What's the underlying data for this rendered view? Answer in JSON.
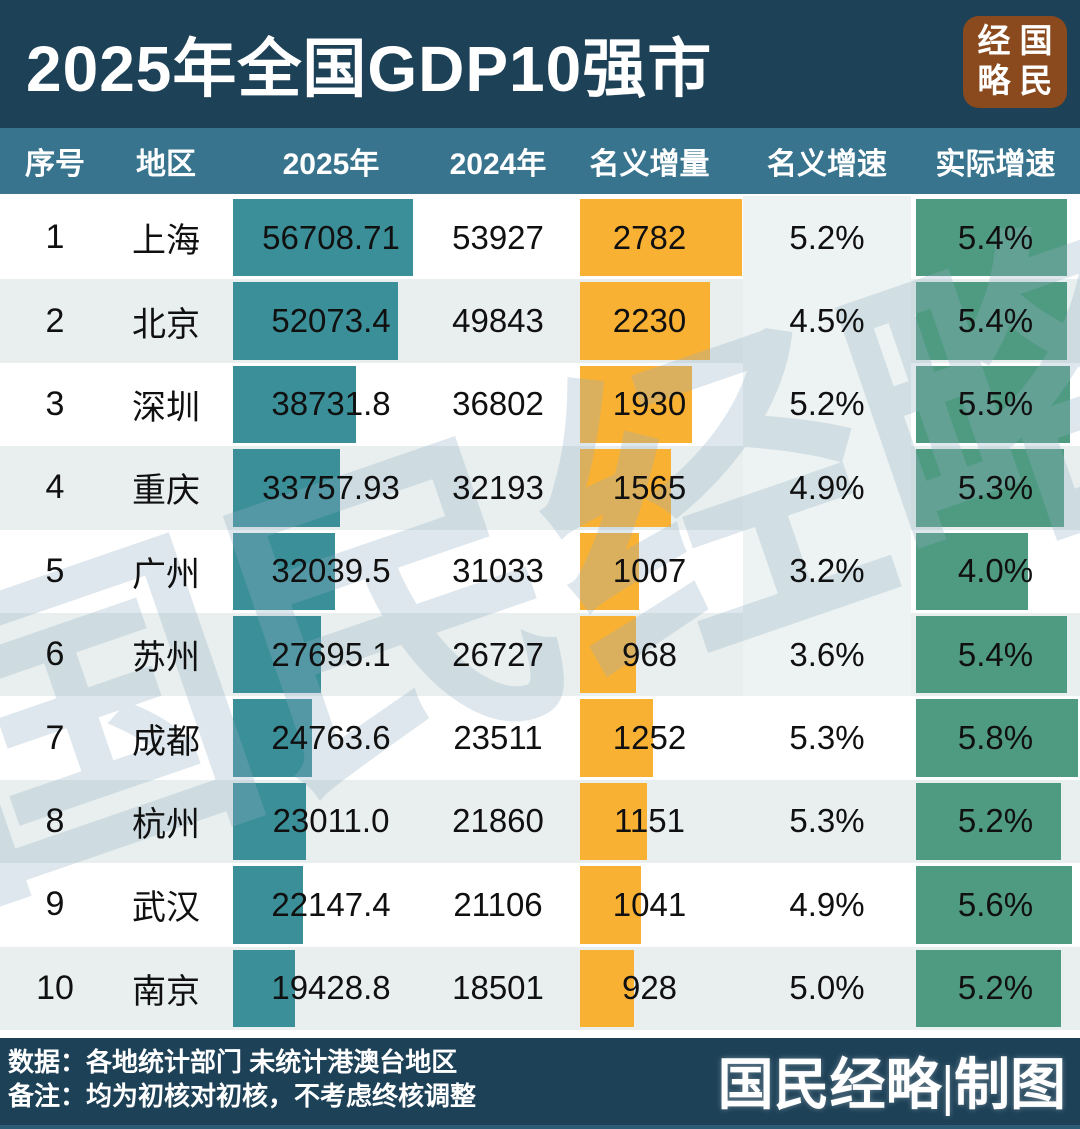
{
  "header": {
    "title": "2025年全国GDP10强市",
    "seal": {
      "chars": [
        "经",
        "国",
        "略",
        "民"
      ],
      "color": "#8a4a1d"
    }
  },
  "chart_data": {
    "type": "table",
    "title": "2025年全国GDP10强市",
    "columns": [
      "序号",
      "地区",
      "2025年",
      "2024年",
      "名义增量",
      "名义增速",
      "实际增速"
    ],
    "bar_columns": {
      "gdp_2025": {
        "color": "#3a8f99",
        "max_value": 56708.71
      },
      "increment": {
        "color": "#f9b134",
        "max_value": 2782
      },
      "real_growth": {
        "color": "#4f9b82",
        "max_value": 5.8
      }
    },
    "rows": [
      {
        "index": "1",
        "city": "上海",
        "gdp_2025": "56708.71",
        "gdp_2024": "53927",
        "increment": "2782",
        "nominal_growth": "5.2%",
        "real_growth": "5.4%"
      },
      {
        "index": "2",
        "city": "北京",
        "gdp_2025": "52073.4",
        "gdp_2024": "49843",
        "increment": "2230",
        "nominal_growth": "4.5%",
        "real_growth": "5.4%"
      },
      {
        "index": "3",
        "city": "深圳",
        "gdp_2025": "38731.8",
        "gdp_2024": "36802",
        "increment": "1930",
        "nominal_growth": "5.2%",
        "real_growth": "5.5%"
      },
      {
        "index": "4",
        "city": "重庆",
        "gdp_2025": "33757.93",
        "gdp_2024": "32193",
        "increment": "1565",
        "nominal_growth": "4.9%",
        "real_growth": "5.3%"
      },
      {
        "index": "5",
        "city": "广州",
        "gdp_2025": "32039.5",
        "gdp_2024": "31033",
        "increment": "1007",
        "nominal_growth": "3.2%",
        "real_growth": "4.0%"
      },
      {
        "index": "6",
        "city": "苏州",
        "gdp_2025": "27695.1",
        "gdp_2024": "26727",
        "increment": "968",
        "nominal_growth": "3.6%",
        "real_growth": "5.4%"
      },
      {
        "index": "7",
        "city": "成都",
        "gdp_2025": "24763.6",
        "gdp_2024": "23511",
        "increment": "1252",
        "nominal_growth": "5.3%",
        "real_growth": "5.8%"
      },
      {
        "index": "8",
        "city": "杭州",
        "gdp_2025": "23011.0",
        "gdp_2024": "21860",
        "increment": "1151",
        "nominal_growth": "5.3%",
        "real_growth": "5.2%"
      },
      {
        "index": "9",
        "city": "武汉",
        "gdp_2025": "22147.4",
        "gdp_2024": "21106",
        "increment": "1041",
        "nominal_growth": "4.9%",
        "real_growth": "5.6%"
      },
      {
        "index": "10",
        "city": "南京",
        "gdp_2025": "19428.8",
        "gdp_2024": "18501",
        "increment": "928",
        "nominal_growth": "5.0%",
        "real_growth": "5.2%"
      }
    ],
    "layout_hints": {
      "stripe_color": "#e9efef",
      "band_color": "#edf2f2",
      "banner_color": "#1d4157",
      "header_row_color": "#38748e",
      "grid": "off",
      "legend": "none"
    }
  },
  "watermark": "国民经略",
  "footer": {
    "line1": "数据：各地统计部门  未统计港澳台地区",
    "line2": "备注：均为初核对初核，不考虑终核调整",
    "credit": "国民经略|制图"
  }
}
